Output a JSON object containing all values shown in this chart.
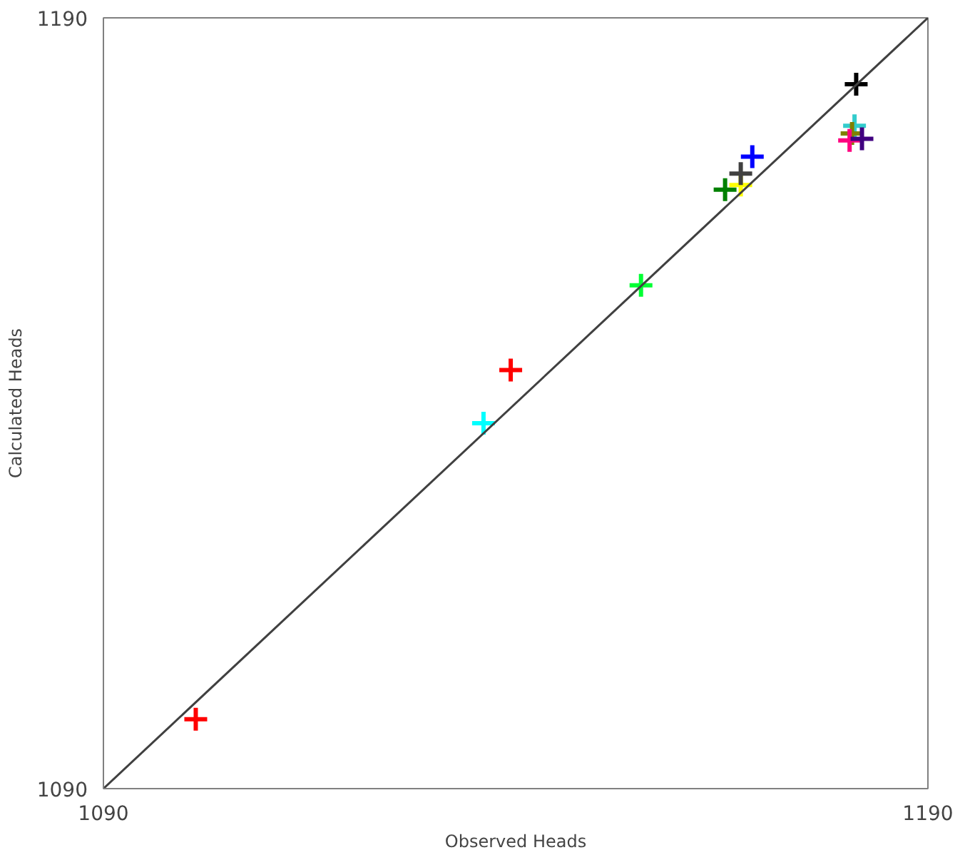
{
  "chart_data": {
    "type": "scatter",
    "xlabel": "Observed Heads",
    "ylabel": "Calculated Heads",
    "xlim": [
      1090,
      1190
    ],
    "ylim": [
      1090,
      1190
    ],
    "xticks": [
      1090,
      1190
    ],
    "yticks": [
      1090,
      1190
    ],
    "series": [
      {
        "marker": "cross",
        "x": [
          1101.2,
          1136.1,
          1139.4,
          1155.2,
          1165.4,
          1167.3,
          1167.3,
          1168.7,
          1181.3,
          1181.1,
          1180.8,
          1180.5,
          1182.0
        ],
        "values": [
          1099.0,
          1137.4,
          1144.3,
          1155.3,
          1167.7,
          1168.3,
          1169.8,
          1172.0,
          1181.4,
          1176.0,
          1175.0,
          1174.1,
          1174.3
        ],
        "colors": [
          "#ff0000",
          "#00ffff",
          "#ff0000",
          "#00ff33",
          "#008000",
          "#ffff00",
          "#404040",
          "#0000ff",
          "#000000",
          "#33cccc",
          "#808000",
          "#ff0080",
          "#400080"
        ]
      },
      {
        "type": "line",
        "marker": "none",
        "line_style": "solid",
        "color": "#404040",
        "x": [
          1090,
          1190
        ],
        "values": [
          1090,
          1190
        ]
      }
    ]
  }
}
